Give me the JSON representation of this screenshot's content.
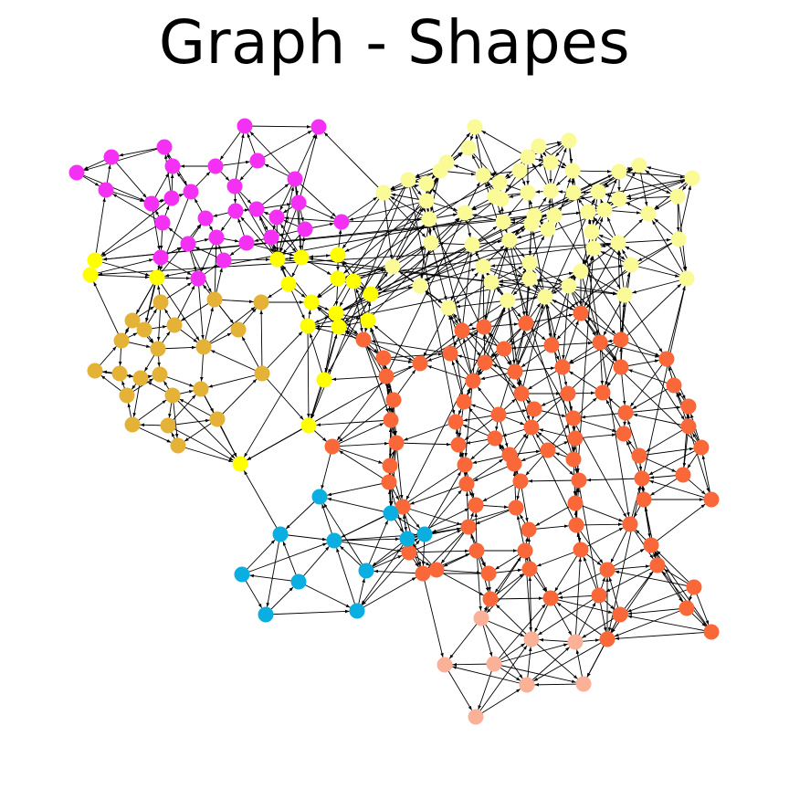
{
  "title": "Graph - Shapes",
  "colors": {
    "magenta": "#f530f5",
    "yellow": "#ffff00",
    "gold": "#e4b236",
    "pale_yellow": "#fafa96",
    "orange_red": "#fa6738",
    "sky_blue": "#0aaee0",
    "salmon": "#fbb197",
    "edge": "#000000"
  },
  "node_groups": [
    {
      "name": "magenta",
      "color": "#f530f5"
    },
    {
      "name": "yellow",
      "color": "#ffff00"
    },
    {
      "name": "gold",
      "color": "#e4b236"
    },
    {
      "name": "pale-yellow",
      "color": "#fafa96"
    },
    {
      "name": "orange-red",
      "color": "#fa6738"
    },
    {
      "name": "sky-blue",
      "color": "#0aaee0"
    },
    {
      "name": "salmon",
      "color": "#fbb197"
    }
  ],
  "graph": {
    "directed": true,
    "node_shape": "circle",
    "edge_style": "arrow"
  }
}
